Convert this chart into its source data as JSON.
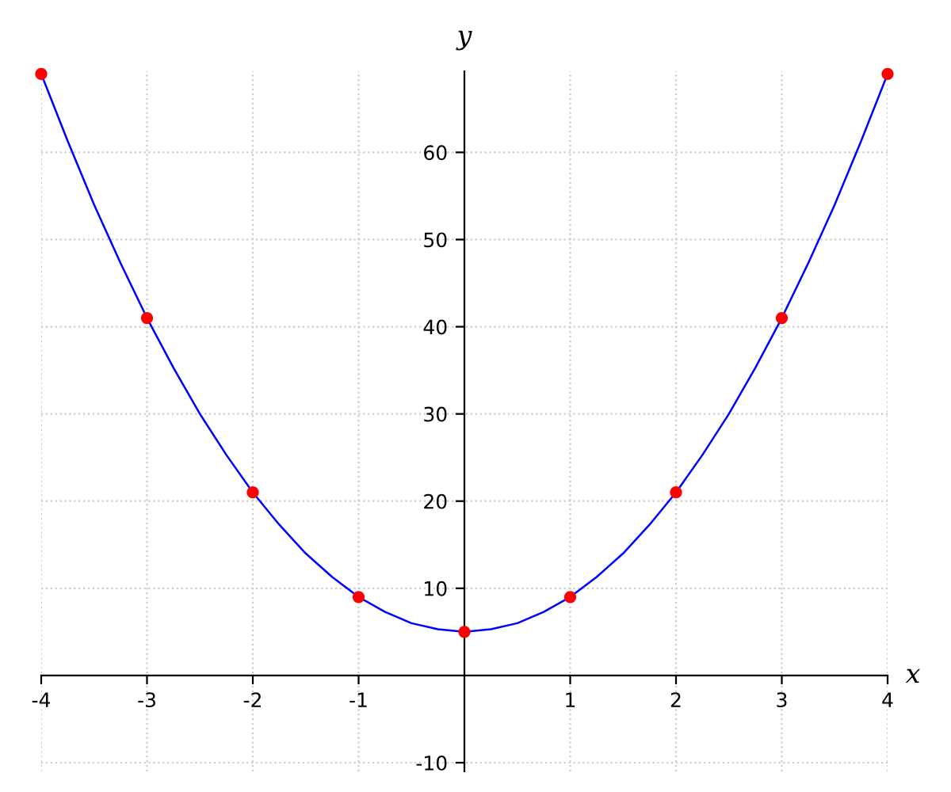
{
  "chart_data": {
    "type": "line",
    "xlabel": "x",
    "ylabel": "y",
    "xlim": [
      -4,
      4
    ],
    "ylim": [
      -11,
      69.3
    ],
    "xticks": [
      -4,
      -3,
      -2,
      -1,
      1,
      2,
      3,
      4
    ],
    "yticks": [
      -10,
      10,
      20,
      30,
      40,
      50,
      60
    ],
    "grid": true,
    "series": [
      {
        "color": "#0000ff",
        "marker": "none",
        "x": [
          -4,
          -3.75,
          -3.5,
          -3.25,
          -3,
          -2.75,
          -2.5,
          -2.25,
          -2,
          -1.75,
          -1.5,
          -1.25,
          -1,
          -0.75,
          -0.5,
          -0.25,
          0,
          0.25,
          0.5,
          0.75,
          1,
          1.25,
          1.5,
          1.75,
          2,
          2.25,
          2.5,
          2.75,
          3,
          3.25,
          3.5,
          3.75,
          4
        ],
        "values": [
          69,
          61.3,
          54,
          47.3,
          41,
          35.3,
          30,
          25.3,
          21,
          17.3,
          14,
          11.3,
          9,
          7.3,
          6,
          5.3,
          5,
          5.3,
          6,
          7.3,
          9,
          11.3,
          14,
          17.3,
          21,
          25.3,
          30,
          35.3,
          41,
          47.3,
          54,
          61.3,
          69
        ]
      },
      {
        "type": "scatter",
        "color": "#ff0000",
        "marker": "circle",
        "x": [
          -4,
          -3,
          -2,
          -1,
          0,
          1,
          2,
          3,
          4
        ],
        "values": [
          69,
          41,
          21,
          9,
          5,
          9,
          21,
          41,
          69
        ]
      }
    ]
  }
}
